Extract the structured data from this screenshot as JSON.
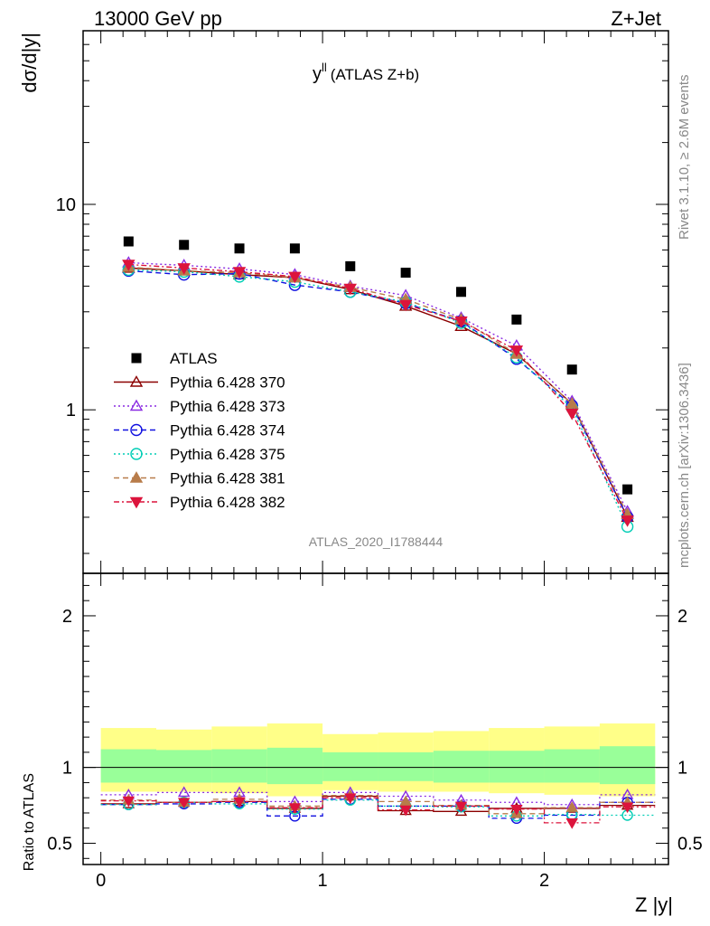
{
  "header": {
    "energy": "13000 GeV pp",
    "process": "Z+Jet",
    "analysis_id": "ATLAS_2020_I1788444",
    "rivet_label": "Rivet 3.1.10, ≥ 2.6M events",
    "mcplots_label": "mcplots.cern.ch [arXiv:1306.3436]"
  },
  "chart_data": [
    {
      "type": "scatter",
      "title_main": "y",
      "title_sup": "ll",
      "title_rest": "(ATLAS Z+b)",
      "ylabel": "dσ/d|y|",
      "yscale": "log",
      "ylim": [
        0.16,
        70
      ],
      "xlim": [
        -0.08,
        2.56
      ],
      "y_ticklabels": [
        "1",
        "10"
      ],
      "x": [
        0.125,
        0.375,
        0.625,
        0.875,
        1.125,
        1.375,
        1.625,
        1.875,
        2.125,
        2.375
      ],
      "x_bin_edges": [
        0,
        0.25,
        0.5,
        0.75,
        1.0,
        1.25,
        1.5,
        1.75,
        2.0,
        2.25,
        2.5
      ],
      "series": [
        {
          "name": "ATLAS",
          "values": [
            6.6,
            6.35,
            6.1,
            6.1,
            5.0,
            4.65,
            3.75,
            2.75,
            1.57,
            0.41
          ],
          "color": "#000000",
          "marker": "square-filled",
          "dash": ""
        },
        {
          "name": "Pythia 6.428 370",
          "values": [
            4.9,
            4.75,
            4.55,
            4.4,
            3.85,
            3.2,
            2.55,
            1.87,
            1.07,
            0.3
          ],
          "color": "#8b0000",
          "marker": "triangle-open",
          "dash": ""
        },
        {
          "name": "Pythia 6.428 373",
          "values": [
            5.2,
            5.05,
            4.85,
            4.55,
            4.0,
            3.6,
            2.8,
            2.05,
            1.1,
            0.32
          ],
          "color": "#8a2be2",
          "marker": "triangle-open",
          "dash": "2,3"
        },
        {
          "name": "Pythia 6.428 374",
          "values": [
            4.75,
            4.55,
            4.6,
            4.05,
            3.75,
            3.3,
            2.7,
            1.77,
            1.05,
            0.3
          ],
          "color": "#1010e0",
          "marker": "circle-open",
          "dash": "6,4"
        },
        {
          "name": "Pythia 6.428 375",
          "values": [
            4.8,
            4.7,
            4.45,
            4.2,
            3.75,
            3.35,
            2.65,
            1.8,
            1.02,
            0.27
          ],
          "color": "#00cdb5",
          "marker": "circle-open",
          "dash": "2,3"
        },
        {
          "name": "Pythia 6.428 381",
          "values": [
            4.95,
            4.75,
            4.65,
            4.4,
            3.95,
            3.45,
            2.75,
            1.87,
            1.07,
            0.31
          ],
          "color": "#b87c4a",
          "marker": "triangle-filled",
          "dash": "6,4"
        },
        {
          "name": "Pythia 6.428 382",
          "values": [
            5.1,
            4.9,
            4.7,
            4.45,
            3.9,
            3.25,
            2.7,
            1.95,
            0.96,
            0.29
          ],
          "color": "#dc143c",
          "marker": "triangle-down-filled",
          "dash": "6,3,2,3"
        }
      ]
    },
    {
      "type": "line",
      "ylabel": "Ratio to ATLAS",
      "xlabel": "Z |y|",
      "ylim": [
        0.36,
        2.28
      ],
      "xlim": [
        -0.08,
        2.56
      ],
      "y_ticklabels": [
        "0.5",
        "1",
        "2"
      ],
      "x_ticklabels": [
        "0",
        "1",
        "2"
      ],
      "x": [
        0.125,
        0.375,
        0.625,
        0.875,
        1.125,
        1.375,
        1.625,
        1.875,
        2.125,
        2.375
      ],
      "x_bin_edges": [
        0,
        0.25,
        0.5,
        0.75,
        1.0,
        1.25,
        1.5,
        1.75,
        2.0,
        2.25,
        2.5
      ],
      "bands": {
        "yellow": {
          "color": "#ffff88",
          "upper": [
            1.26,
            1.25,
            1.27,
            1.29,
            1.22,
            1.23,
            1.24,
            1.26,
            1.27,
            1.29
          ],
          "lower": [
            0.84,
            0.84,
            0.83,
            0.81,
            0.85,
            0.84,
            0.84,
            0.83,
            0.82,
            0.81
          ]
        },
        "green": {
          "color": "#99ff99",
          "upper": [
            1.12,
            1.115,
            1.12,
            1.13,
            1.1,
            1.1,
            1.11,
            1.11,
            1.12,
            1.14
          ],
          "lower": [
            0.9,
            0.9,
            0.9,
            0.89,
            0.91,
            0.91,
            0.9,
            0.9,
            0.9,
            0.89
          ]
        }
      },
      "series": [
        {
          "name": "Pythia 6.428 370",
          "values": [
            0.76,
            0.77,
            0.775,
            0.73,
            0.81,
            0.715,
            0.71,
            0.73,
            0.73,
            0.75
          ]
        },
        {
          "name": "Pythia 6.428 373",
          "values": [
            0.82,
            0.835,
            0.835,
            0.775,
            0.835,
            0.81,
            0.785,
            0.77,
            0.755,
            0.82
          ]
        },
        {
          "name": "Pythia 6.428 374",
          "values": [
            0.755,
            0.76,
            0.77,
            0.68,
            0.79,
            0.745,
            0.745,
            0.665,
            0.685,
            0.77
          ]
        },
        {
          "name": "Pythia 6.428 375",
          "values": [
            0.755,
            0.77,
            0.76,
            0.725,
            0.785,
            0.745,
            0.74,
            0.68,
            0.69,
            0.685
          ]
        },
        {
          "name": "Pythia 6.428 381",
          "values": [
            0.785,
            0.77,
            0.79,
            0.745,
            0.815,
            0.775,
            0.75,
            0.695,
            0.735,
            0.77
          ]
        },
        {
          "name": "Pythia 6.428 382",
          "values": [
            0.78,
            0.77,
            0.775,
            0.735,
            0.8,
            0.72,
            0.745,
            0.725,
            0.635,
            0.74
          ]
        }
      ]
    }
  ]
}
